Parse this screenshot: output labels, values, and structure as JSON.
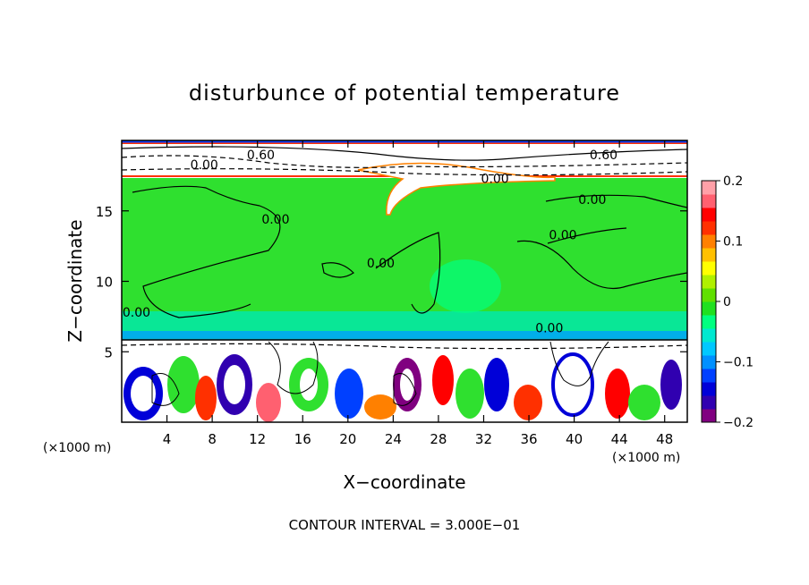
{
  "chart_data": {
    "type": "heatmap",
    "title": "disturbunce of potential temperature",
    "xlabel": "X−coordinate",
    "ylabel": "Z−coordinate",
    "x_unit": "(×1000 m)",
    "z_unit": "(×1000 m)",
    "xlim": [
      0,
      50
    ],
    "ylim": [
      0,
      20
    ],
    "x_ticks": [
      4,
      8,
      12,
      16,
      20,
      24,
      28,
      32,
      36,
      40,
      44,
      48
    ],
    "y_ticks": [
      5,
      10,
      15
    ],
    "colorbar": {
      "min": -0.2,
      "max": 0.2,
      "tick_values": [
        0.2,
        0.1,
        0,
        -0.1,
        -0.2
      ],
      "tick_labels": [
        "0.2",
        "0.1",
        "0",
        "−0.1",
        "−0.2"
      ],
      "colors": [
        "#800080",
        "#3000b0",
        "#0000d8",
        "#0040ff",
        "#0090ff",
        "#00c8ff",
        "#00e8d0",
        "#00ff80",
        "#20e020",
        "#60e000",
        "#b0f000",
        "#ffff00",
        "#ffc000",
        "#ff8000",
        "#ff3000",
        "#ff0000",
        "#ff6070",
        "#ffa0a8"
      ]
    },
    "contour_labels": [
      {
        "text": "0.60",
        "x": 12.3,
        "z": 19.0
      },
      {
        "text": "0.60",
        "x": 42.6,
        "z": 19.0
      },
      {
        "text": "0.00",
        "x": 7.3,
        "z": 18.3
      },
      {
        "text": "0.00",
        "x": 33.0,
        "z": 17.3
      },
      {
        "text": "0.00",
        "x": 13.6,
        "z": 14.4
      },
      {
        "text": "0.00",
        "x": 41.6,
        "z": 15.8
      },
      {
        "text": "0.00",
        "x": 39.0,
        "z": 13.3
      },
      {
        "text": "0.00",
        "x": 22.9,
        "z": 11.3
      },
      {
        "text": "0.00",
        "x": 1.3,
        "z": 7.8
      },
      {
        "text": "0.00",
        "x": 37.8,
        "z": 6.7
      }
    ],
    "footer": "CONTOUR INTERVAL = 3.000E−01"
  }
}
